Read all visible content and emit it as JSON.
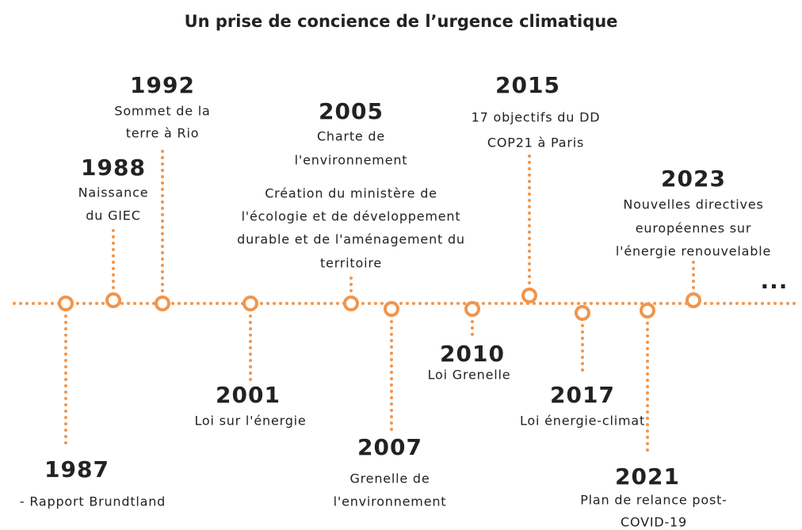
{
  "title": "Un prise de concience de l’urgence climatique",
  "events": [
    {
      "year": "1987",
      "text": [
        "- Rapport Brundtland"
      ]
    },
    {
      "year": "1988",
      "text": [
        "Naissance",
        "du GIEC"
      ]
    },
    {
      "year": "1992",
      "text": [
        "Sommet de la",
        "terre à Rio"
      ]
    },
    {
      "year": "2001",
      "text": [
        "Loi sur l'énergie"
      ]
    },
    {
      "year": "2005",
      "text": [
        "Charte de",
        "l'environnement",
        "Création du ministère de",
        "l'écologie et de développement",
        "durable et de l'aménagement du",
        "territoire"
      ]
    },
    {
      "year": "2007",
      "text": [
        "Grenelle de",
        "l'environnement"
      ]
    },
    {
      "year": "2010",
      "text": [
        "Loi Grenelle"
      ]
    },
    {
      "year": "2015",
      "text": [
        "17 objectifs du DD",
        "COP21 à Paris"
      ]
    },
    {
      "year": "2017",
      "text": [
        "Loi énergie-climat"
      ]
    },
    {
      "year": "2021",
      "text": [
        "Plan de relance post-",
        "COVID-19"
      ]
    },
    {
      "year": "2023",
      "text": [
        "Nouvelles directives",
        "européennes sur",
        "l'énergie renouvelable"
      ]
    }
  ],
  "more": "..."
}
